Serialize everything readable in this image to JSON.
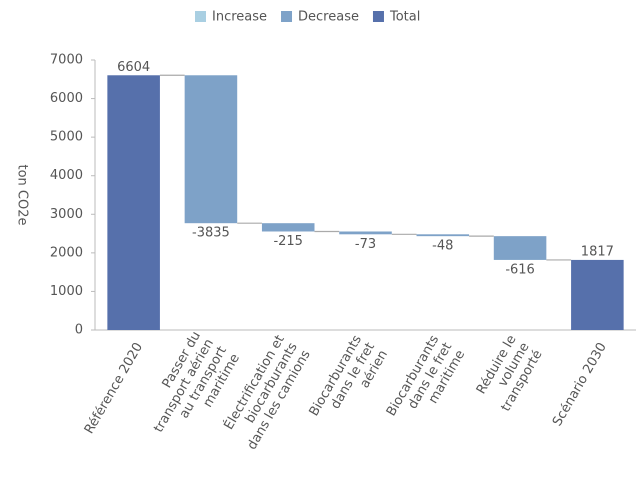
{
  "chart_data": {
    "type": "waterfall",
    "y_label": "ton CO2e",
    "legend": [
      {
        "name": "Increase",
        "color": "#a9cfe2"
      },
      {
        "name": "Decrease",
        "color": "#7ea2c8"
      },
      {
        "name": "Total",
        "color": "#5670ab"
      }
    ],
    "categories": [
      [
        "Référence 2020"
      ],
      [
        "Passer du",
        "transport aérien",
        "au transport",
        "maritime"
      ],
      [
        "Électrification et",
        "biocarburants",
        "dans les camions"
      ],
      [
        "Biocarburants",
        "dans le fret",
        "aérien"
      ],
      [
        "Biocarburants",
        "dans le fret",
        "maritime"
      ],
      [
        "Réduire le",
        "volume",
        "transporté"
      ],
      [
        "Scénario 2030"
      ]
    ],
    "measure": [
      "Total",
      "Decrease",
      "Decrease",
      "Decrease",
      "Decrease",
      "Decrease",
      "Total"
    ],
    "values": [
      6604,
      -3835,
      -215,
      -73,
      -48,
      -616,
      1817
    ],
    "ylim": [
      0,
      7000
    ],
    "yticks": [
      0,
      1000,
      2000,
      3000,
      4000,
      5000,
      6000,
      7000
    ]
  }
}
